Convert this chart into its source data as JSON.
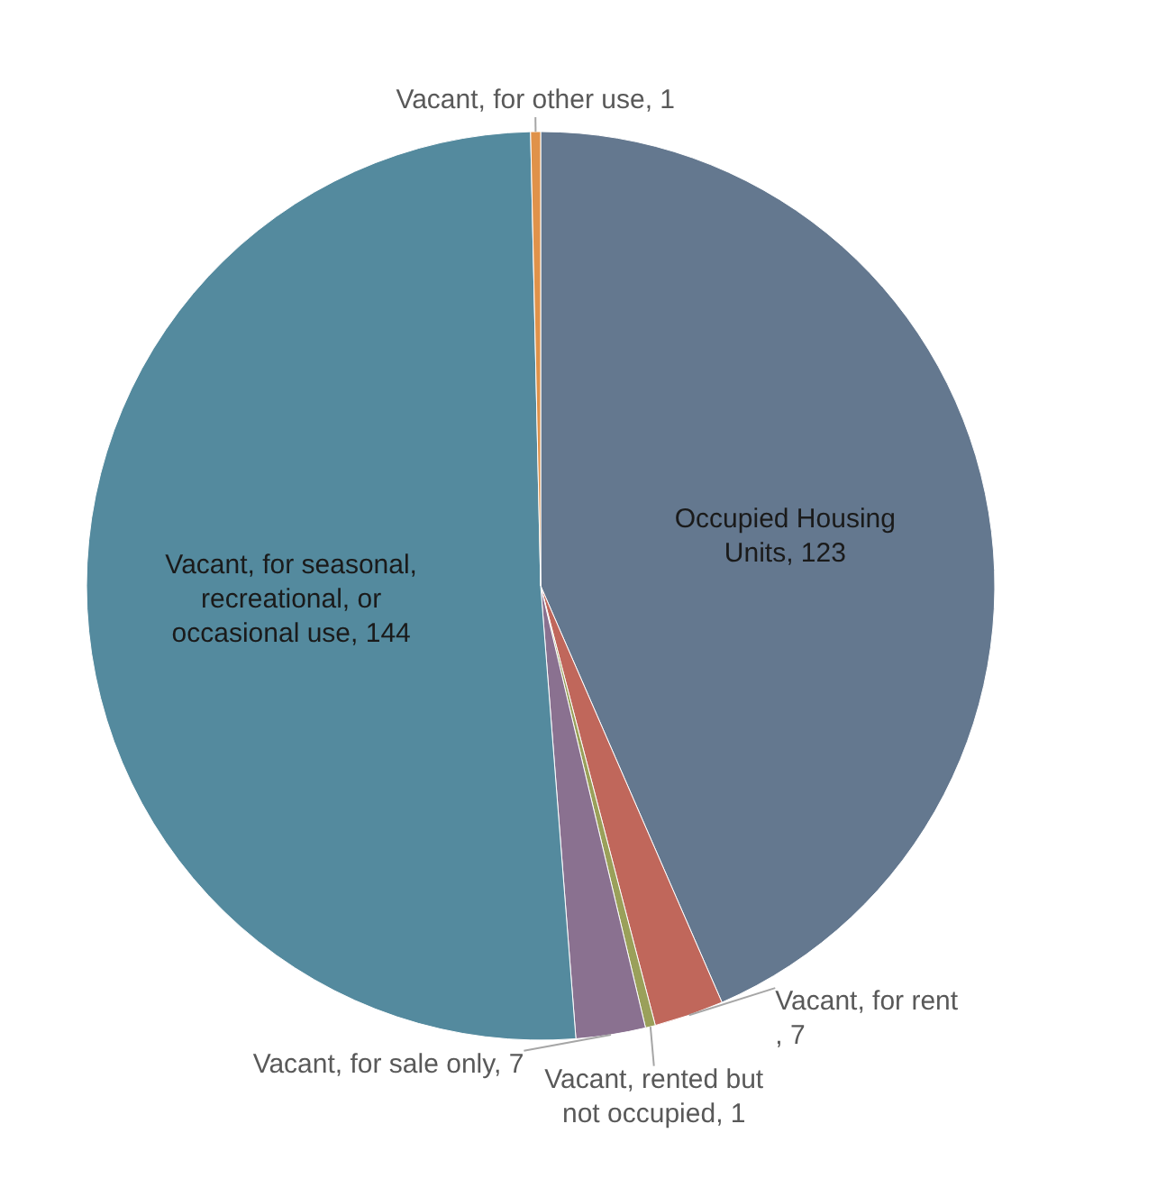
{
  "chart_data": {
    "type": "pie",
    "categories": [
      "Occupied Housing Units",
      "Vacant, for rent",
      "Vacant, rented but not occupied",
      "Vacant, for sale only",
      "Vacant, for seasonal, recreational, or occasional use",
      "Vacant, for other use"
    ],
    "values": [
      123,
      7,
      1,
      7,
      144,
      1
    ],
    "colors": [
      "#64788f",
      "#c0675b",
      "#9aa05a",
      "#8a7190",
      "#548a9e",
      "#e0924a"
    ],
    "value_labels": [
      ", 123",
      ", 7",
      ", 1",
      ", 7",
      ", 144",
      ", 1"
    ],
    "legend": false
  }
}
